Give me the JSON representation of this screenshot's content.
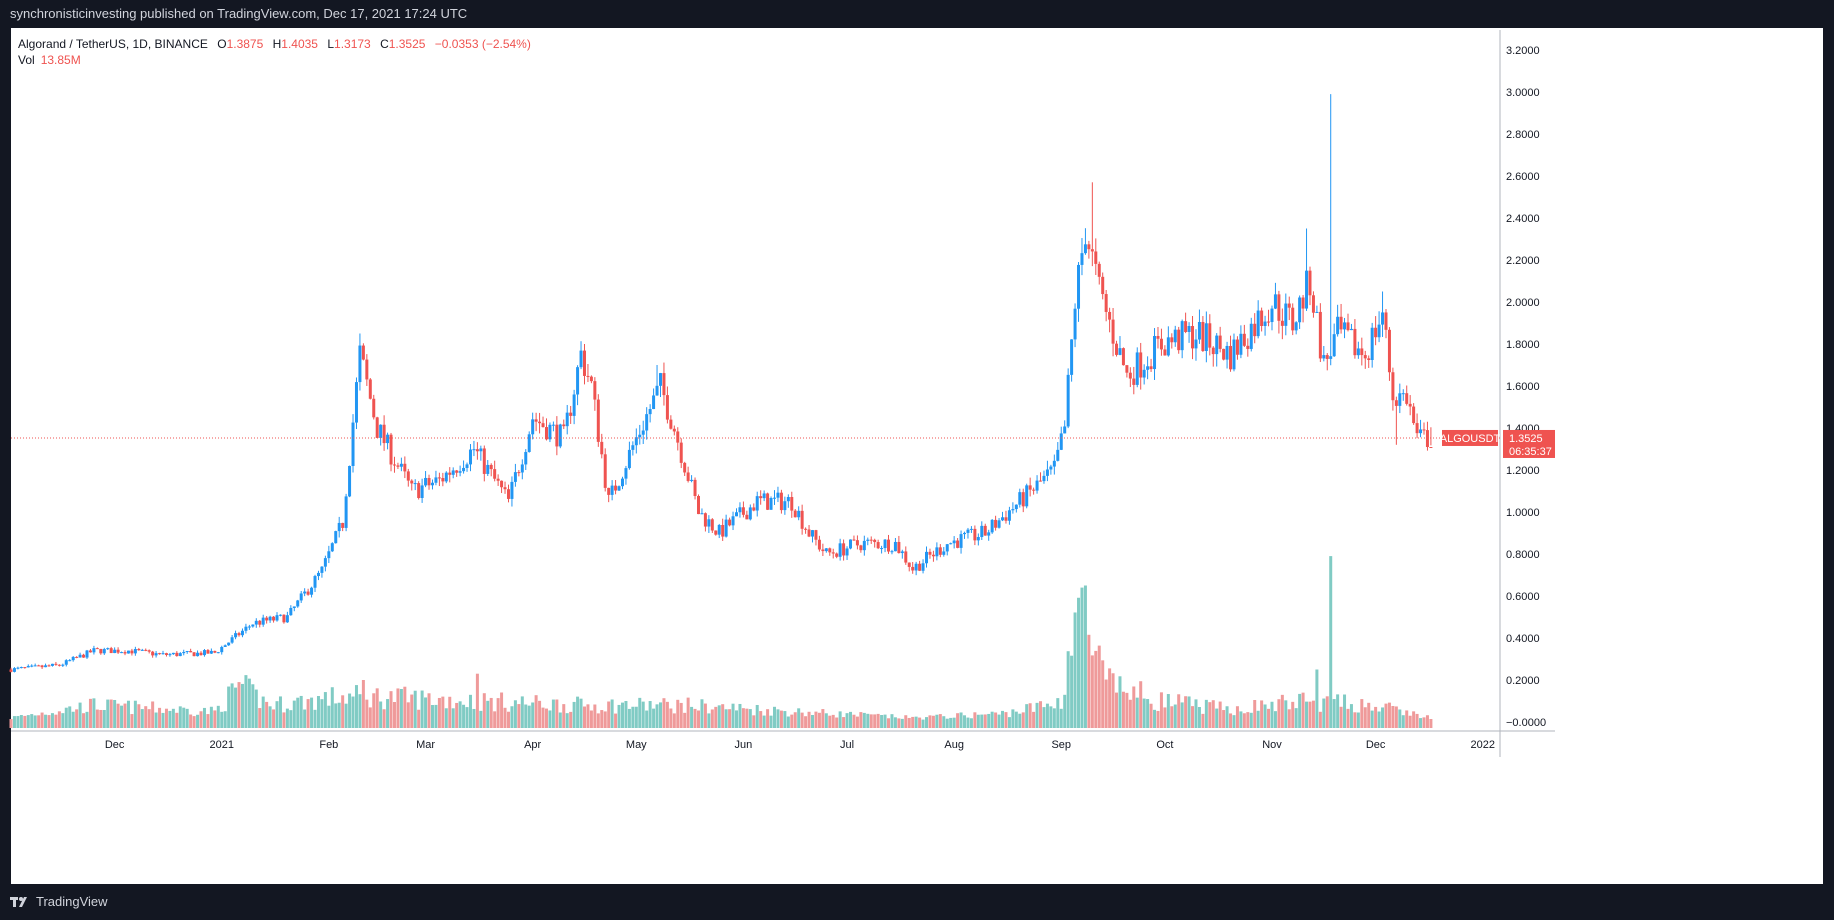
{
  "topbar": {
    "text": "synchronisticinvesting published on TradingView.com, Dec 17, 2021 17:24 UTC"
  },
  "legend": {
    "symbol": "Algorand / TetherUS, 1D, BINANCE",
    "o_label": "O",
    "o_value": "1.3875",
    "h_label": "H",
    "h_value": "1.4035",
    "l_label": "L",
    "l_value": "1.3173",
    "c_label": "C",
    "c_value": "1.3525",
    "change": "−0.0353 (−2.54%)",
    "vol_label": "Vol",
    "vol_value": "13.85M"
  },
  "price_tag": {
    "symbol": "ALGOUSDT",
    "price": "1.3525",
    "countdown": "06:35:37"
  },
  "footer": {
    "brand": "TradingView"
  },
  "colors": {
    "up": "#2196f3",
    "down": "#ef5350",
    "vol_up": "#80cbc4",
    "vol_down": "#ef9a9a",
    "background": "#131722",
    "panel": "#ffffff"
  },
  "chart_data": {
    "type": "candlestick",
    "symbol": "ALGOUSDT",
    "interval": "1D",
    "last_price": 1.3525,
    "y_ticks": [
      "3.2000",
      "3.0000",
      "2.8000",
      "2.6000",
      "2.4000",
      "2.2000",
      "2.0000",
      "1.8000",
      "1.6000",
      "1.4000",
      "1.2000",
      "1.0000",
      "0.8000",
      "0.6000",
      "0.4000",
      "0.2000",
      "−0.0000"
    ],
    "ylim": [
      -0.05,
      3.35
    ],
    "x_ticks": [
      {
        "label": "Dec",
        "date": "2020-12-01"
      },
      {
        "label": "2021",
        "date": "2021-01-01"
      },
      {
        "label": "Feb",
        "date": "2021-02-01"
      },
      {
        "label": "Mar",
        "date": "2021-03-01"
      },
      {
        "label": "Apr",
        "date": "2021-04-01"
      },
      {
        "label": "May",
        "date": "2021-05-01"
      },
      {
        "label": "Jun",
        "date": "2021-06-01"
      },
      {
        "label": "Jul",
        "date": "2021-07-01"
      },
      {
        "label": "Aug",
        "date": "2021-08-01"
      },
      {
        "label": "Sep",
        "date": "2021-09-01"
      },
      {
        "label": "Oct",
        "date": "2021-10-01"
      },
      {
        "label": "Nov",
        "date": "2021-11-01"
      },
      {
        "label": "Dec",
        "date": "2021-12-01"
      },
      {
        "label": "2022",
        "date": "2022-01-01"
      }
    ],
    "xlim": [
      "2020-11-01",
      "2022-01-06"
    ],
    "close_anchors": [
      [
        "2020-11-01",
        0.25
      ],
      [
        "2020-11-15",
        0.27
      ],
      [
        "2020-11-25",
        0.34
      ],
      [
        "2020-12-05",
        0.34
      ],
      [
        "2020-12-15",
        0.32
      ],
      [
        "2020-12-30",
        0.33
      ],
      [
        "2021-01-10",
        0.47
      ],
      [
        "2021-01-20",
        0.5
      ],
      [
        "2021-01-30",
        0.72
      ],
      [
        "2021-02-05",
        0.95
      ],
      [
        "2021-02-10",
        1.75
      ],
      [
        "2021-02-15",
        1.4
      ],
      [
        "2021-02-25",
        1.1
      ],
      [
        "2021-03-05",
        1.15
      ],
      [
        "2021-03-15",
        1.3
      ],
      [
        "2021-03-25",
        1.05
      ],
      [
        "2021-04-01",
        1.45
      ],
      [
        "2021-04-10",
        1.35
      ],
      [
        "2021-04-15",
        1.75
      ],
      [
        "2021-04-18",
        1.6
      ],
      [
        "2021-04-23",
        1.05
      ],
      [
        "2021-05-01",
        1.35
      ],
      [
        "2021-05-08",
        1.6
      ],
      [
        "2021-05-12",
        1.4
      ],
      [
        "2021-05-19",
        1.0
      ],
      [
        "2021-05-25",
        0.9
      ],
      [
        "2021-06-05",
        1.05
      ],
      [
        "2021-06-15",
        1.05
      ],
      [
        "2021-06-20",
        0.9
      ],
      [
        "2021-06-25",
        0.8
      ],
      [
        "2021-07-05",
        0.85
      ],
      [
        "2021-07-15",
        0.85
      ],
      [
        "2021-07-20",
        0.73
      ],
      [
        "2021-07-30",
        0.85
      ],
      [
        "2021-08-10",
        0.9
      ],
      [
        "2021-08-20",
        1.05
      ],
      [
        "2021-08-30",
        1.2
      ],
      [
        "2021-09-02",
        1.4
      ],
      [
        "2021-09-05",
        2.0
      ],
      [
        "2021-09-08",
        2.35
      ],
      [
        "2021-09-12",
        2.05
      ],
      [
        "2021-09-20",
        1.65
      ],
      [
        "2021-09-30",
        1.8
      ],
      [
        "2021-10-10",
        1.85
      ],
      [
        "2021-10-20",
        1.75
      ],
      [
        "2021-11-01",
        2.0
      ],
      [
        "2021-11-07",
        1.9
      ],
      [
        "2021-11-12",
        2.1
      ],
      [
        "2021-11-16",
        1.7
      ],
      [
        "2021-11-20",
        1.85
      ],
      [
        "2021-11-28",
        1.75
      ],
      [
        "2021-12-03",
        1.95
      ],
      [
        "2021-12-06",
        1.55
      ],
      [
        "2021-12-10",
        1.55
      ],
      [
        "2021-12-13",
        1.35
      ],
      [
        "2021-12-17",
        1.3525
      ]
    ],
    "price_spikes": [
      {
        "date": "2021-02-10",
        "high": 1.85
      },
      {
        "date": "2021-04-16",
        "high": 1.8
      },
      {
        "date": "2021-05-07",
        "high": 1.7
      },
      {
        "date": "2021-09-10",
        "high": 2.57
      },
      {
        "date": "2021-11-11",
        "high": 2.35
      },
      {
        "date": "2021-11-18",
        "high": 2.99
      },
      {
        "date": "2021-12-03",
        "high": 2.05
      },
      {
        "date": "2021-12-07",
        "low": 1.32
      }
    ],
    "volume_anchors": [
      [
        "2020-11-01",
        0.02
      ],
      [
        "2020-11-25",
        0.08
      ],
      [
        "2020-12-30",
        0.05
      ],
      [
        "2021-01-06",
        0.17
      ],
      [
        "2021-01-15",
        0.08
      ],
      [
        "2021-02-05",
        0.12
      ],
      [
        "2021-02-15",
        0.12
      ],
      [
        "2021-03-15",
        0.1
      ],
      [
        "2021-04-15",
        0.08
      ],
      [
        "2021-05-15",
        0.08
      ],
      [
        "2021-06-15",
        0.05
      ],
      [
        "2021-07-20",
        0.02
      ],
      [
        "2021-08-15",
        0.04
      ],
      [
        "2021-08-28",
        0.08
      ],
      [
        "2021-09-01",
        0.1
      ],
      [
        "2021-09-06",
        0.62
      ],
      [
        "2021-09-09",
        0.4
      ],
      [
        "2021-09-14",
        0.18
      ],
      [
        "2021-09-30",
        0.1
      ],
      [
        "2021-10-20",
        0.06
      ],
      [
        "2021-11-10",
        0.1
      ],
      [
        "2021-11-30",
        0.08
      ],
      [
        "2021-12-17",
        0.02
      ]
    ],
    "volume_spikes": [
      {
        "date": "2021-01-06",
        "value": 0.19
      },
      {
        "date": "2021-02-11",
        "value": 0.2
      },
      {
        "date": "2021-03-16",
        "value": 0.23
      },
      {
        "date": "2021-09-07",
        "value": 0.64
      },
      {
        "date": "2021-09-08",
        "value": 0.65
      },
      {
        "date": "2021-11-14",
        "value": 0.25
      },
      {
        "date": "2021-11-18",
        "value": 0.79
      }
    ]
  }
}
